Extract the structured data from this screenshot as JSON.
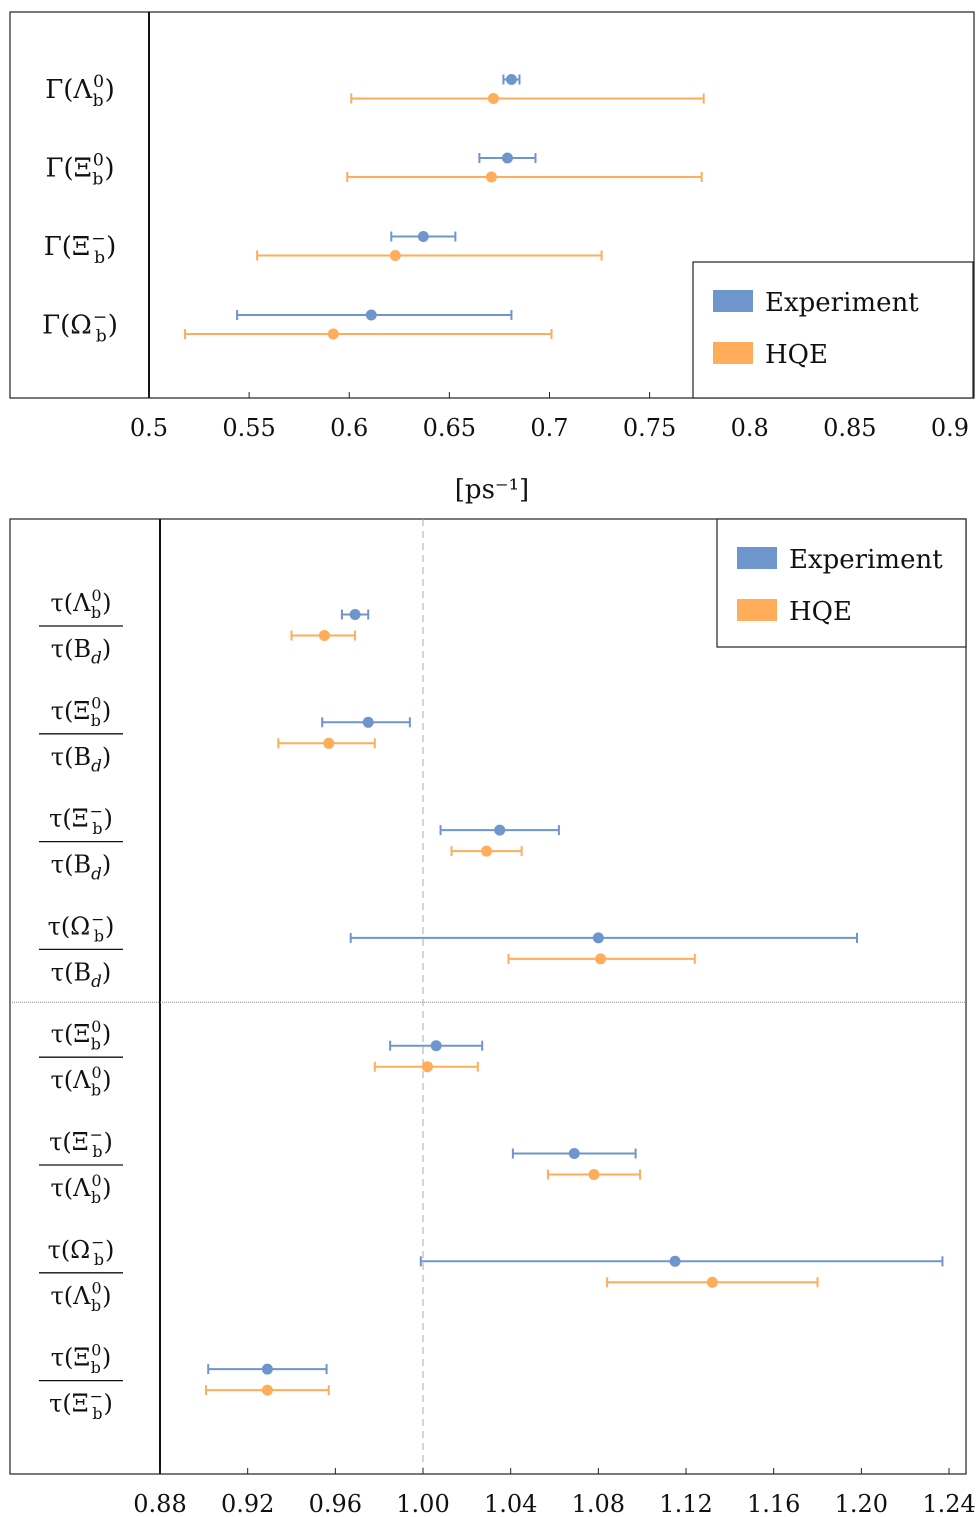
{
  "chart_data": [
    {
      "type": "scatter",
      "subtype": "errorbar-horizontal",
      "title": "",
      "xlabel": "[ps⁻¹]",
      "ylabel": "",
      "xlim": [
        0.5,
        0.91
      ],
      "xticks": [
        0.5,
        0.55,
        0.6,
        0.65,
        0.7,
        0.75,
        0.8,
        0.85,
        0.9
      ],
      "xtick_labels": [
        "0.5",
        "0.55",
        "0.6",
        "0.65",
        "0.7",
        "0.75",
        "0.8",
        "0.85",
        "0.9"
      ],
      "grid": false,
      "legend_position": "bottom-right",
      "categories": [
        "Γ(Λ_b^0)",
        "Γ(Ξ_b^0)",
        "Γ(Ξ_b^−)",
        "Γ(Ω_b^−)"
      ],
      "category_labels": [
        {
          "pre": "Γ(Λ",
          "sup": "0",
          "sub": "b",
          "post": ")"
        },
        {
          "pre": "Γ(Ξ",
          "sup": "0",
          "sub": "b",
          "post": ")"
        },
        {
          "pre": "Γ(Ξ",
          "sup": "−",
          "sub": "b",
          "post": ")"
        },
        {
          "pre": "Γ(Ω",
          "sup": "−",
          "sub": "b",
          "post": ")"
        }
      ],
      "series": [
        {
          "name": "Experiment",
          "color": "#6f95cd",
          "values": [
            0.681,
            0.679,
            0.637,
            0.611
          ],
          "lower": [
            0.677,
            0.665,
            0.621,
            0.544
          ],
          "upper": [
            0.685,
            0.693,
            0.653,
            0.681
          ]
        },
        {
          "name": "HQE",
          "color": "#ffad5a",
          "values": [
            0.672,
            0.671,
            0.623,
            0.592
          ],
          "lower": [
            0.601,
            0.599,
            0.554,
            0.518
          ],
          "upper": [
            0.777,
            0.776,
            0.726,
            0.701
          ]
        }
      ]
    },
    {
      "type": "scatter",
      "subtype": "errorbar-horizontal",
      "title": "",
      "xlabel": "",
      "ylabel": "",
      "xlim": [
        0.88,
        1.245
      ],
      "xticks": [
        0.88,
        0.92,
        0.96,
        1.0,
        1.04,
        1.08,
        1.12,
        1.16,
        1.2,
        1.24
      ],
      "xtick_labels": [
        "0.88",
        "0.92",
        "0.96",
        "1.00",
        "1.04",
        "1.08",
        "1.12",
        "1.16",
        "1.20",
        "1.24"
      ],
      "reference_line": 1.0,
      "grid": false,
      "legend_position": "top-right",
      "categories": [
        "τ(Λ_b^0)/τ(B_d)",
        "τ(Ξ_b^0)/τ(B_d)",
        "τ(Ξ_b^−)/τ(B_d)",
        "τ(Ω_b^−)/τ(B_d)",
        "τ(Ξ_b^0)/τ(Λ_b^0)",
        "τ(Ξ_b^−)/τ(Λ_b^0)",
        "τ(Ω_b^−)/τ(Λ_b^0)",
        "τ(Ξ_b^0)/τ(Ξ_b^−)"
      ],
      "category_labels": [
        {
          "num": {
            "pre": "τ(Λ",
            "sup": "0",
            "sub": "b",
            "post": ")"
          },
          "den": {
            "pre": "τ(B",
            "sup": "",
            "sub": "d",
            "post": ")"
          }
        },
        {
          "num": {
            "pre": "τ(Ξ",
            "sup": "0",
            "sub": "b",
            "post": ")"
          },
          "den": {
            "pre": "τ(B",
            "sup": "",
            "sub": "d",
            "post": ")"
          }
        },
        {
          "num": {
            "pre": "τ(Ξ",
            "sup": "−",
            "sub": "b",
            "post": ")"
          },
          "den": {
            "pre": "τ(B",
            "sup": "",
            "sub": "d",
            "post": ")"
          }
        },
        {
          "num": {
            "pre": "τ(Ω",
            "sup": "−",
            "sub": "b",
            "post": ")"
          },
          "den": {
            "pre": "τ(B",
            "sup": "",
            "sub": "d",
            "post": ")"
          }
        },
        {
          "num": {
            "pre": "τ(Ξ",
            "sup": "0",
            "sub": "b",
            "post": ")"
          },
          "den": {
            "pre": "τ(Λ",
            "sup": "0",
            "sub": "b",
            "post": ")"
          }
        },
        {
          "num": {
            "pre": "τ(Ξ",
            "sup": "−",
            "sub": "b",
            "post": ")"
          },
          "den": {
            "pre": "τ(Λ",
            "sup": "0",
            "sub": "b",
            "post": ")"
          }
        },
        {
          "num": {
            "pre": "τ(Ω",
            "sup": "−",
            "sub": "b",
            "post": ")"
          },
          "den": {
            "pre": "τ(Λ",
            "sup": "0",
            "sub": "b",
            "post": ")"
          }
        },
        {
          "num": {
            "pre": "τ(Ξ",
            "sup": "0",
            "sub": "b",
            "post": ")"
          },
          "den": {
            "pre": "τ(Ξ",
            "sup": "−",
            "sub": "b",
            "post": ")"
          }
        }
      ],
      "separator_after": 3,
      "series": [
        {
          "name": "Experiment",
          "color": "#6f95cd",
          "values": [
            0.969,
            0.975,
            1.035,
            1.08,
            1.006,
            1.069,
            1.115,
            0.929
          ],
          "lower": [
            0.963,
            0.954,
            1.008,
            0.967,
            0.985,
            1.041,
            0.999,
            0.902
          ],
          "upper": [
            0.975,
            0.994,
            1.062,
            1.198,
            1.027,
            1.097,
            1.237,
            0.956
          ]
        },
        {
          "name": "HQE",
          "color": "#ffad5a",
          "values": [
            0.955,
            0.957,
            1.029,
            1.081,
            1.002,
            1.078,
            1.132,
            0.929
          ],
          "lower": [
            0.94,
            0.934,
            1.013,
            1.039,
            0.978,
            1.057,
            1.084,
            0.901
          ],
          "upper": [
            0.969,
            0.978,
            1.045,
            1.124,
            1.025,
            1.099,
            1.18,
            0.957
          ]
        }
      ]
    }
  ]
}
